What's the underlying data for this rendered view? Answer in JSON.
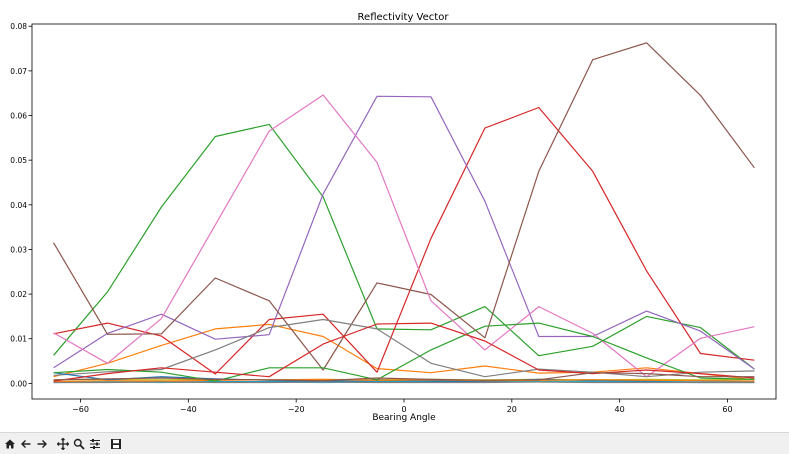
{
  "toolbar": {
    "buttons": [
      {
        "name": "home-icon"
      },
      {
        "name": "back-arrow-icon"
      },
      {
        "name": "forward-arrow-icon"
      },
      {
        "name": "pan-icon"
      },
      {
        "name": "zoom-icon"
      },
      {
        "name": "configure-subplots-icon"
      },
      {
        "name": "save-icon"
      }
    ]
  },
  "chart_data": {
    "type": "line",
    "title": "Reflectivity Vector",
    "xlabel": "Bearing Angle",
    "ylabel": "",
    "xlim": [
      -69,
      69
    ],
    "ylim": [
      -0.0035,
      0.0805
    ],
    "xticks": [
      -60,
      -40,
      -20,
      0,
      20,
      40,
      60
    ],
    "xtick_labels": [
      "−60",
      "−40",
      "−20",
      "0",
      "20",
      "40",
      "60"
    ],
    "yticks": [
      0.0,
      0.01,
      0.02,
      0.03,
      0.04,
      0.05,
      0.06,
      0.07,
      0.08
    ],
    "ytick_labels": [
      "0.00",
      "0.01",
      "0.02",
      "0.03",
      "0.04",
      "0.05",
      "0.06",
      "0.07",
      "0.08"
    ],
    "grid": false,
    "x": [
      -65,
      -55,
      -45,
      -35,
      -25,
      -15,
      -5,
      5,
      15,
      25,
      35,
      45,
      55,
      65
    ],
    "series": [
      {
        "color": "#1f77b4",
        "values": [
          0.0003,
          0.0004,
          0.0003,
          0.0004,
          0.0004,
          0.0004,
          0.0005,
          0.0005,
          0.0006,
          0.0007,
          0.0008,
          0.0006,
          0.0005,
          0.0004
        ]
      },
      {
        "color": "#ff7f0e",
        "values": [
          0.0015,
          0.0045,
          0.0085,
          0.0122,
          0.0132,
          0.0105,
          0.0033,
          0.0024,
          0.0039,
          0.0023,
          0.0025,
          0.0035,
          0.0022,
          0.0008
        ]
      },
      {
        "color": "#2ca02c",
        "values": [
          0.0063,
          0.0205,
          0.0395,
          0.0553,
          0.058,
          0.0418,
          0.0122,
          0.012,
          0.0172,
          0.0062,
          0.0083,
          0.015,
          0.0125,
          0.0032
        ]
      },
      {
        "color": "#d62728",
        "values": [
          0.0111,
          0.0135,
          0.0106,
          0.0021,
          0.0143,
          0.0155,
          0.0025,
          0.0325,
          0.0572,
          0.0618,
          0.0475,
          0.0252,
          0.0067,
          0.0052
        ]
      },
      {
        "color": "#9467bd",
        "values": [
          0.0035,
          0.0112,
          0.0155,
          0.0099,
          0.0109,
          0.0424,
          0.0643,
          0.0642,
          0.0408,
          0.0105,
          0.0105,
          0.0162,
          0.0117,
          0.0032
        ]
      },
      {
        "color": "#8c564b",
        "values": [
          0.0315,
          0.011,
          0.0111,
          0.0236,
          0.0185,
          0.003,
          0.0225,
          0.0199,
          0.0102,
          0.0475,
          0.0725,
          0.0763,
          0.0645,
          0.0483
        ]
      },
      {
        "color": "#e377c2",
        "values": [
          0.0113,
          0.0045,
          0.0145,
          0.0355,
          0.0565,
          0.0646,
          0.0495,
          0.0185,
          0.0075,
          0.0172,
          0.0112,
          0.0015,
          0.0101,
          0.0127
        ]
      },
      {
        "color": "#7f7f7f",
        "values": [
          0.0018,
          0.0026,
          0.0031,
          0.0075,
          0.0125,
          0.0143,
          0.0122,
          0.0045,
          0.0015,
          0.0032,
          0.0025,
          0.0015,
          0.0025,
          0.0028
        ]
      },
      {
        "color": "#bcbd22",
        "values": [
          0.0008,
          0.0009,
          0.0008,
          0.0009,
          0.0008,
          0.0009,
          0.0008,
          0.0009,
          0.0008,
          0.0009,
          0.0008,
          0.0009,
          0.0008,
          0.0009
        ]
      },
      {
        "color": "#17becf",
        "values": [
          0.0002,
          0.0003,
          0.0002,
          0.0003,
          0.0003,
          0.0002,
          0.0003,
          0.0003,
          0.0004,
          0.0005,
          0.0004,
          0.0003,
          0.0002,
          0.0002
        ]
      },
      {
        "color": "#1f77b4",
        "values": [
          0.0024,
          0.0008,
          0.0015,
          0.001,
          0.0007,
          0.0006,
          0.0008,
          0.0005,
          0.0004,
          0.0009,
          0.0006,
          0.0005,
          0.0006,
          0.0005
        ]
      },
      {
        "color": "#ff7f0e",
        "values": [
          0.0004,
          0.0006,
          0.0005,
          0.0007,
          0.0008,
          0.0009,
          0.0007,
          0.0008,
          0.0006,
          0.0007,
          0.0008,
          0.0007,
          0.0006,
          0.0005
        ]
      },
      {
        "color": "#2ca02c",
        "values": [
          0.0024,
          0.0031,
          0.0025,
          0.0005,
          0.0035,
          0.0035,
          0.0008,
          0.0075,
          0.0128,
          0.0135,
          0.0105,
          0.0057,
          0.0012,
          0.0009
        ]
      },
      {
        "color": "#d62728",
        "values": [
          0.0005,
          0.0022,
          0.0035,
          0.0025,
          0.0015,
          0.0088,
          0.0133,
          0.0135,
          0.0095,
          0.003,
          0.0022,
          0.003,
          0.0022,
          0.0012
        ]
      },
      {
        "color": "#8c564b",
        "values": [
          0.0008,
          0.001,
          0.0012,
          0.0009,
          0.0008,
          0.0006,
          0.0012,
          0.0009,
          0.0007,
          0.0008,
          0.0024,
          0.0022,
          0.0015,
          0.0015
        ]
      },
      {
        "color": "#7f7f7f",
        "values": [
          0.0002,
          0.0002,
          0.0003,
          0.0002,
          0.0002,
          0.0003,
          0.0002,
          0.0002,
          0.0002,
          0.0003,
          0.0002,
          0.0002,
          0.0002,
          0.0002
        ]
      }
    ]
  }
}
